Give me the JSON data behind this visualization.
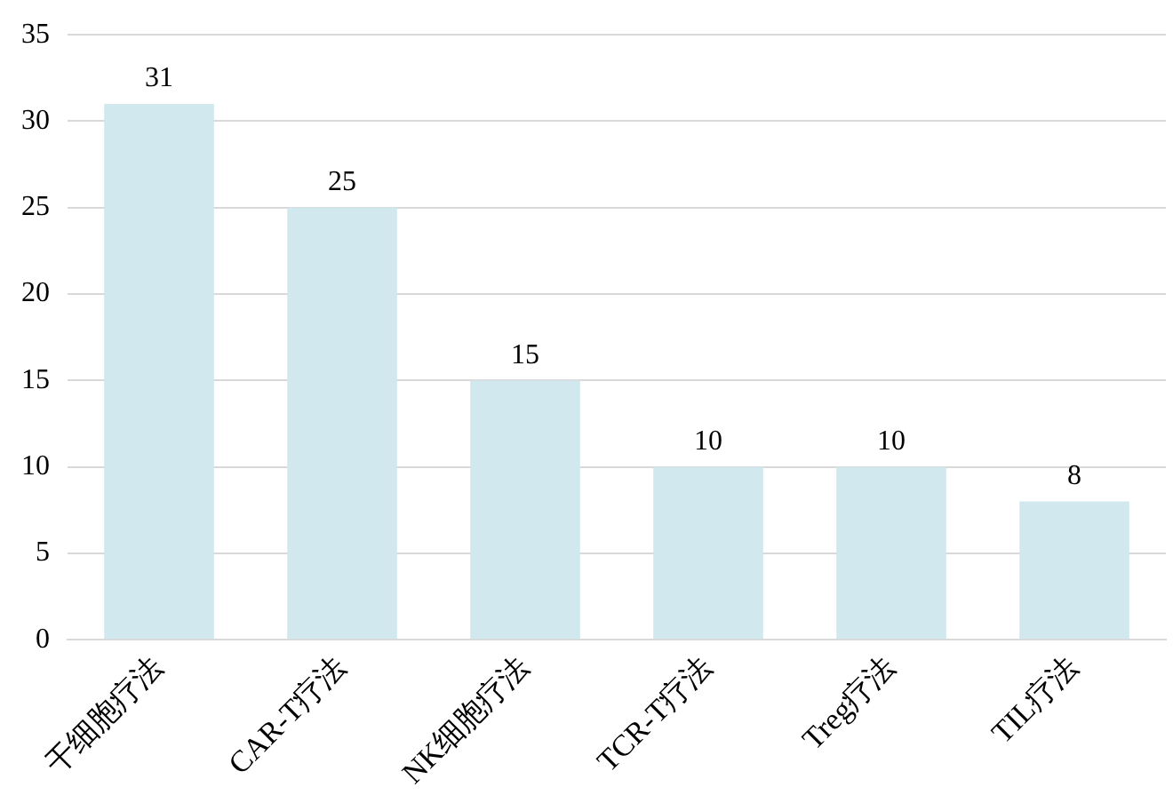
{
  "chart_data": {
    "type": "bar",
    "categories": [
      "干细胞疗法",
      "CAR-T疗法",
      "NK细胞疗法",
      "TCR-T疗法",
      "Treg疗法",
      "TIL疗法"
    ],
    "values": [
      31,
      25,
      15,
      10,
      10,
      8
    ],
    "color": "#d0e8ee",
    "ylim": [
      0,
      35
    ],
    "yticks": [
      0,
      5,
      10,
      15,
      20,
      25,
      30,
      35
    ],
    "grid": "y",
    "data_labels": true,
    "legend": false
  }
}
